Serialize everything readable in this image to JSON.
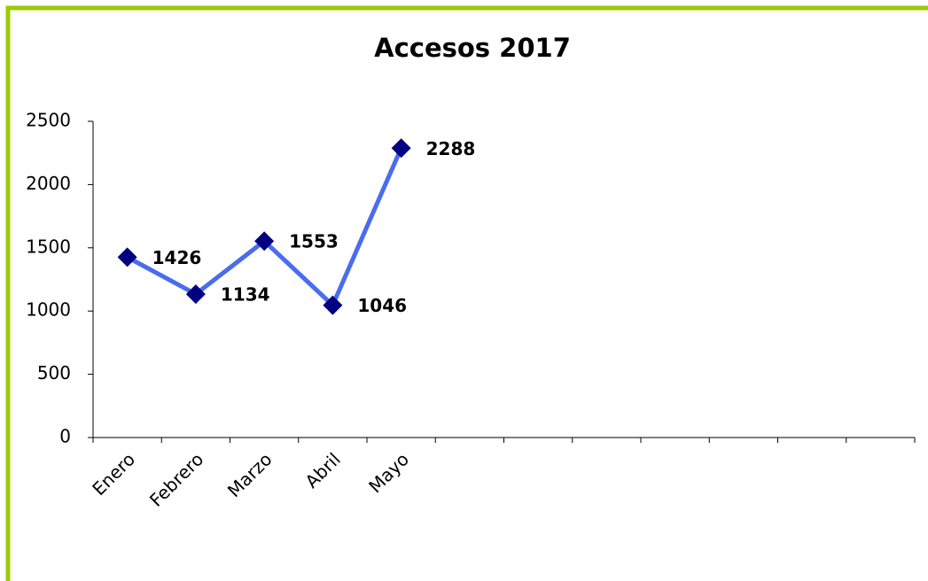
{
  "chart_data": {
    "type": "line",
    "title": "Accesos 2017",
    "categories": [
      "Enero",
      "Febrero",
      "Marzo",
      "Abril",
      "Mayo",
      null,
      null,
      null,
      null,
      null,
      null,
      null
    ],
    "series": [
      {
        "name": "Accesos",
        "color": "#4a6cf0",
        "marker_color": "#000080",
        "values": [
          1426,
          1134,
          1553,
          1046,
          2288,
          null,
          null,
          null,
          null,
          null,
          null,
          null
        ]
      }
    ],
    "ylim": [
      0,
      2500
    ],
    "yticks": [
      0,
      500,
      1000,
      1500,
      2000,
      2500
    ],
    "grid": false,
    "legend": false
  }
}
